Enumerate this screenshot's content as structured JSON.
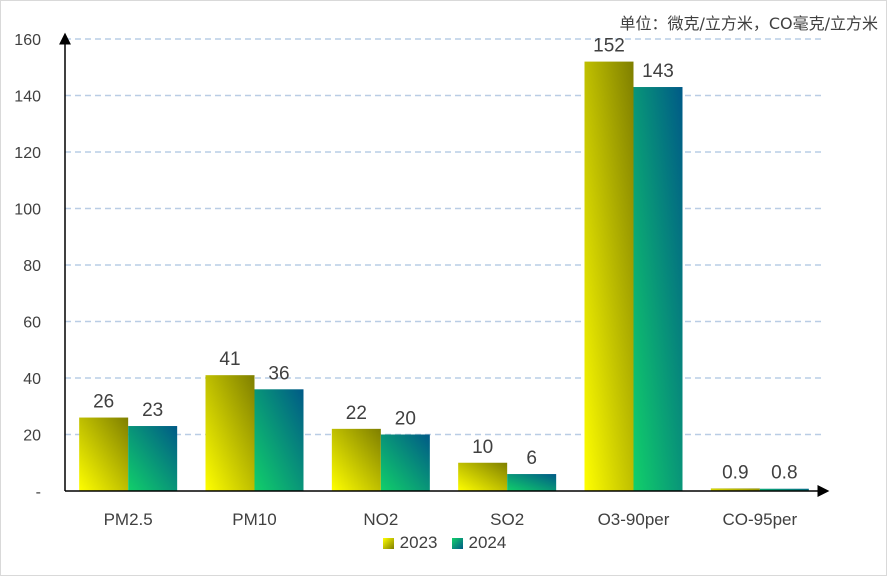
{
  "chart_data": {
    "type": "bar",
    "title": "",
    "unit_note": "单位：微克/立方米，CO毫克/立方米",
    "xlabel": "",
    "ylabel": "",
    "categories": [
      "PM2.5",
      "PM10",
      "NO2",
      "SO2",
      "O3-90per",
      "CO-95per"
    ],
    "series": [
      {
        "name": "2023",
        "values": [
          26,
          41,
          22,
          10,
          152,
          0.9
        ],
        "labels": [
          "26",
          "41",
          "22",
          "10",
          "152",
          "0.9"
        ]
      },
      {
        "name": "2024",
        "values": [
          23,
          36,
          20,
          6,
          143,
          0.8
        ],
        "labels": [
          "23",
          "36",
          "20",
          "6",
          "143",
          "0.8"
        ]
      }
    ],
    "ylim": [
      0,
      160
    ],
    "yticks": [
      "-",
      "20",
      "40",
      "60",
      "80",
      "100",
      "120",
      "140",
      "160"
    ],
    "grid": true,
    "legend_position": "bottom",
    "colors": {
      "2023_light": "#ffff00",
      "2023_dark": "#7f7f00",
      "2024_light": "#11d06a",
      "2024_dark": "#005a87",
      "grid": "#b9cde5",
      "axis": "#000000",
      "text": "#404040"
    }
  }
}
